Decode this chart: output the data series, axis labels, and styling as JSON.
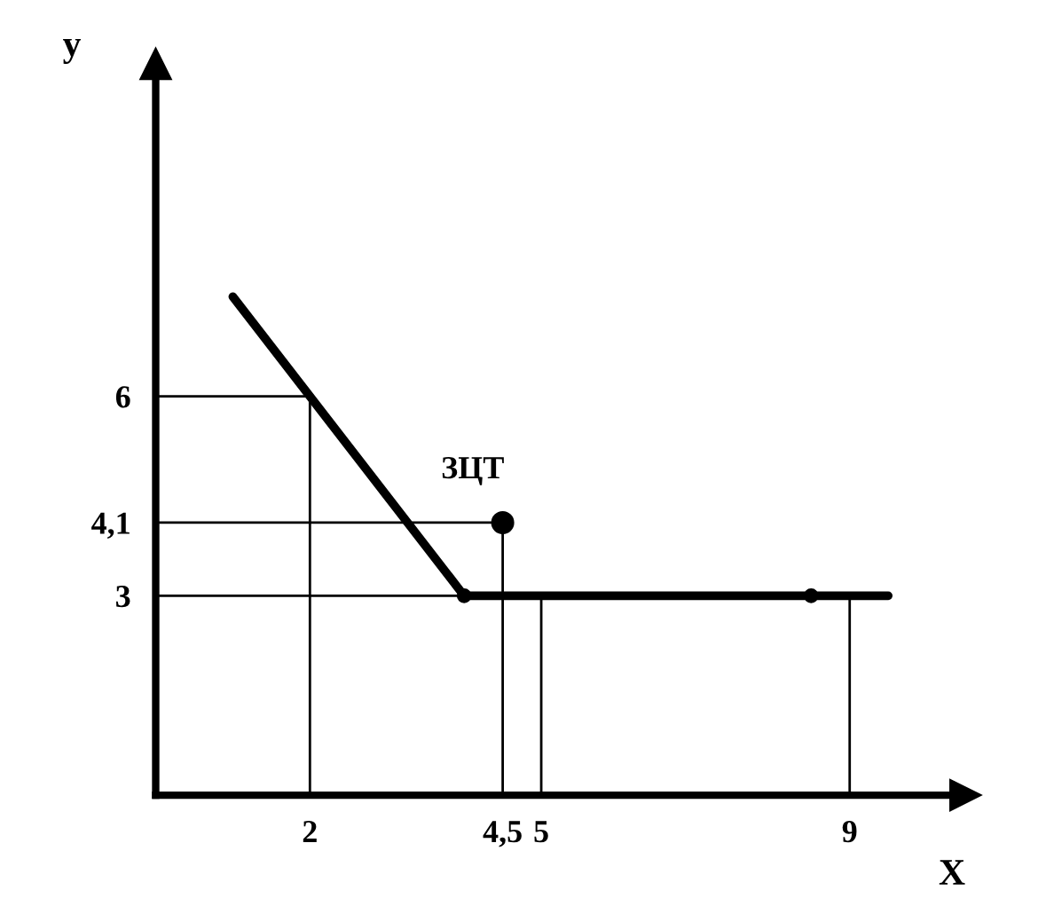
{
  "chart_data": {
    "type": "line",
    "xlabel": "X",
    "ylabel": "у",
    "series": [
      {
        "color": "#000000",
        "x": [
          1,
          4,
          9.5
        ],
        "values": [
          7.5,
          3,
          3
        ]
      },
      {
        "color": "#000000",
        "x": [
          0,
          2,
          2,
          null,
          0,
          4.5,
          4.5,
          null,
          0,
          4,
          null,
          5,
          5,
          null,
          9,
          9
        ],
        "values": [
          6,
          6,
          0,
          null,
          4.1,
          4.1,
          0,
          null,
          3,
          3,
          null,
          0,
          3,
          null,
          0,
          3
        ]
      },
      {
        "type": "scatter",
        "color": "#000000",
        "x": [
          4,
          8.5
        ],
        "values": [
          3,
          3
        ]
      },
      {
        "type": "scatter",
        "color": "#000000",
        "x": [
          4.5
        ],
        "values": [
          4.1
        ]
      }
    ],
    "annotations": [
      {
        "text": "ЗЦТ",
        "x": 4.5,
        "y": 4.1
      }
    ],
    "xlim": [
      0,
      10.5
    ],
    "ylim": [
      0,
      11
    ],
    "xticks": [
      2,
      {
        "value": 4.5,
        "label": "4,5"
      },
      5,
      9
    ],
    "yticks": [
      3,
      {
        "value": 4.1,
        "label": "4,1"
      },
      6
    ],
    "grid": false,
    "legend": false
  }
}
